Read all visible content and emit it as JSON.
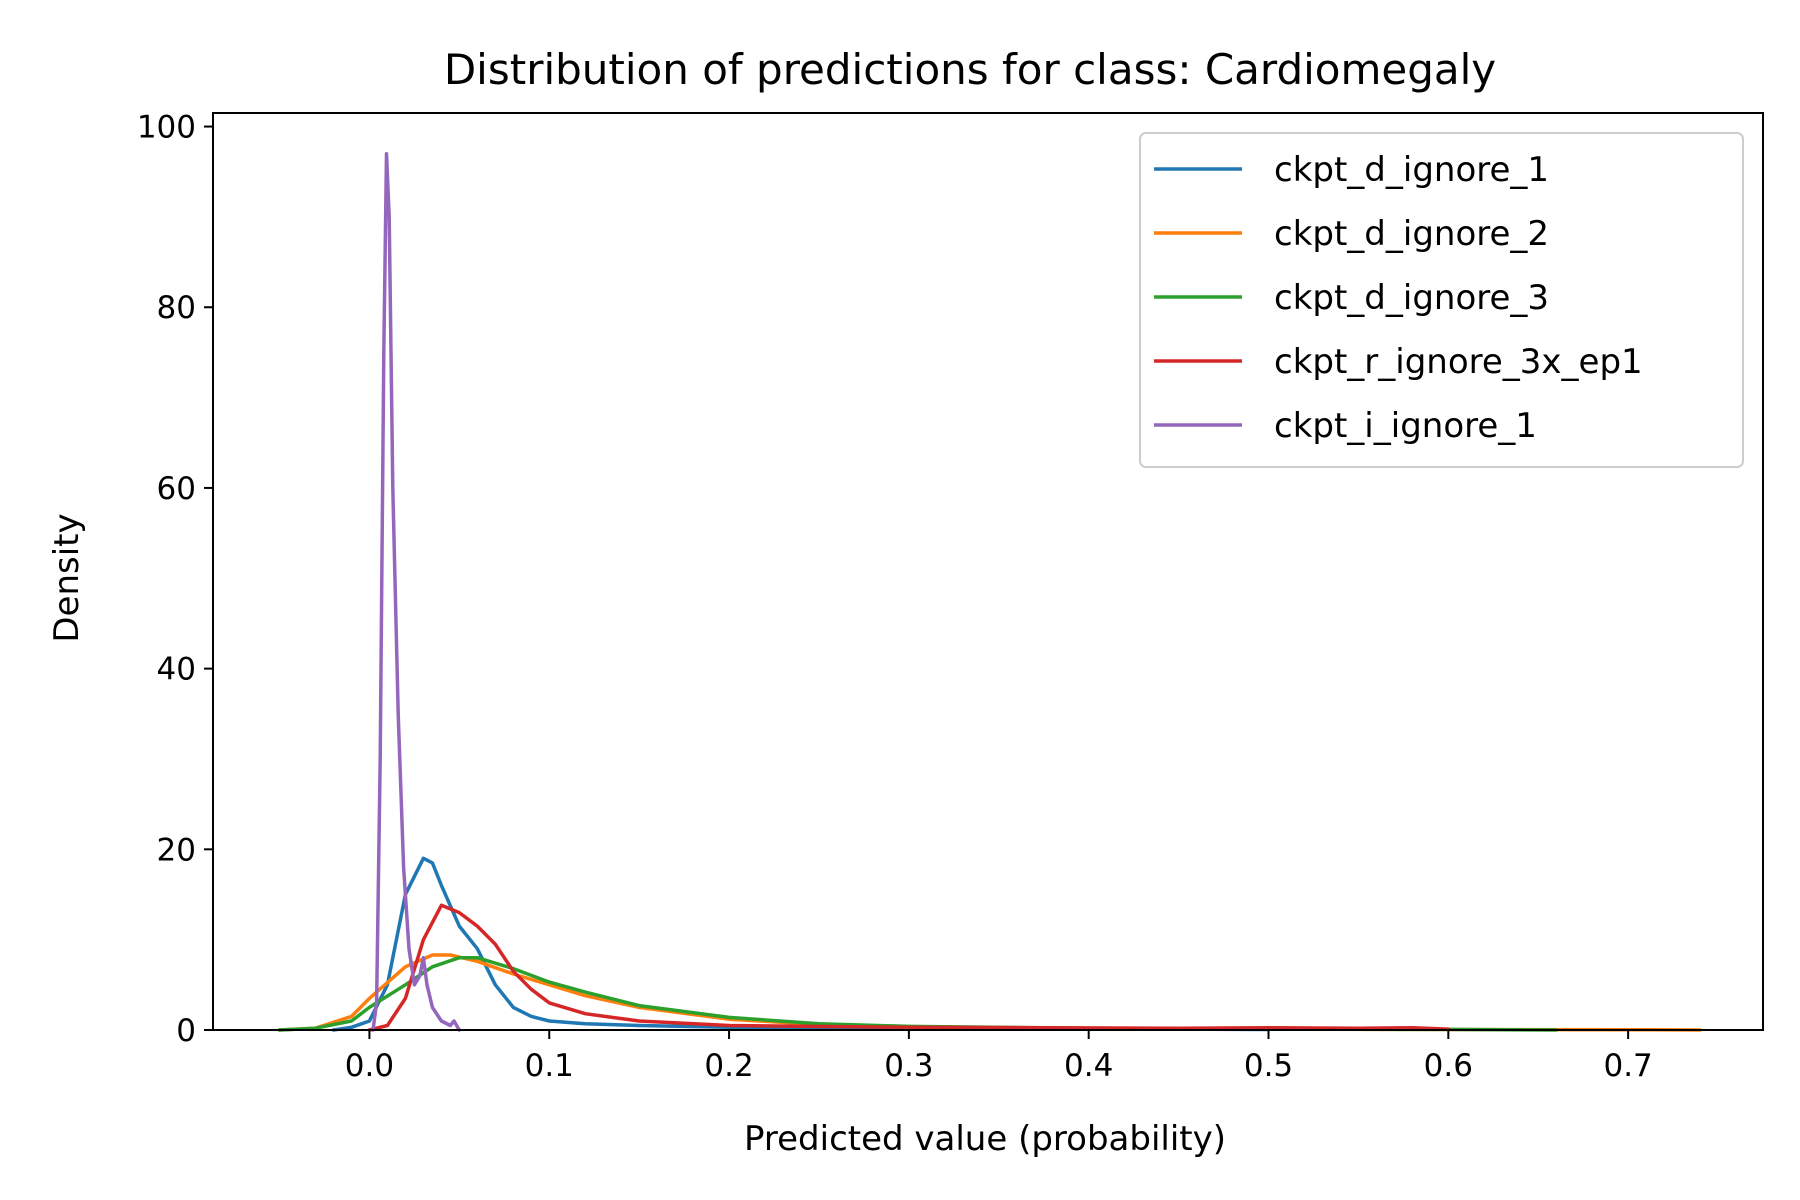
{
  "chart_data": {
    "type": "line",
    "title": "Distribution of predictions for class: Cardiomegaly",
    "xlabel": "Predicted value (probability)",
    "ylabel": "Density",
    "xlim": [
      -0.087,
      0.775
    ],
    "ylim": [
      0,
      101.5
    ],
    "xticks": [
      0.0,
      0.1,
      0.2,
      0.3,
      0.4,
      0.5,
      0.6,
      0.7
    ],
    "xtick_labels": [
      "0.0",
      "0.1",
      "0.2",
      "0.3",
      "0.4",
      "0.5",
      "0.6",
      "0.7"
    ],
    "yticks": [
      0,
      20,
      40,
      60,
      80,
      100
    ],
    "ytick_labels": [
      "0",
      "20",
      "40",
      "60",
      "80",
      "100"
    ],
    "grid": false,
    "legend_position": "top-right",
    "series": [
      {
        "name": "ckpt_d_ignore_1",
        "color": "#1f77b4",
        "points": [
          [
            -0.02,
            0
          ],
          [
            -0.01,
            0.3
          ],
          [
            0,
            1
          ],
          [
            0.01,
            5
          ],
          [
            0.02,
            15
          ],
          [
            0.03,
            19
          ],
          [
            0.035,
            18.5
          ],
          [
            0.04,
            16
          ],
          [
            0.05,
            11.5
          ],
          [
            0.06,
            9
          ],
          [
            0.07,
            5
          ],
          [
            0.08,
            2.5
          ],
          [
            0.09,
            1.5
          ],
          [
            0.1,
            1.0
          ],
          [
            0.12,
            0.7
          ],
          [
            0.15,
            0.5
          ],
          [
            0.2,
            0.3
          ],
          [
            0.3,
            0.15
          ],
          [
            0.45,
            0.1
          ],
          [
            0.5,
            0.05
          ]
        ]
      },
      {
        "name": "ckpt_d_ignore_2",
        "color": "#ff7f0e",
        "points": [
          [
            -0.05,
            0
          ],
          [
            -0.03,
            0.2
          ],
          [
            -0.01,
            1.5
          ],
          [
            0,
            3.5
          ],
          [
            0.02,
            7
          ],
          [
            0.035,
            8.3
          ],
          [
            0.045,
            8.3
          ],
          [
            0.06,
            7.6
          ],
          [
            0.08,
            6.2
          ],
          [
            0.1,
            5
          ],
          [
            0.12,
            3.8
          ],
          [
            0.15,
            2.5
          ],
          [
            0.2,
            1.2
          ],
          [
            0.25,
            0.6
          ],
          [
            0.3,
            0.3
          ],
          [
            0.4,
            0.15
          ],
          [
            0.5,
            0.1
          ],
          [
            0.6,
            0.05
          ],
          [
            0.7,
            0.03
          ],
          [
            0.74,
            0
          ]
        ]
      },
      {
        "name": "ckpt_d_ignore_3",
        "color": "#2ca02c",
        "points": [
          [
            -0.05,
            0
          ],
          [
            -0.03,
            0.2
          ],
          [
            -0.01,
            1
          ],
          [
            0,
            2.5
          ],
          [
            0.02,
            5
          ],
          [
            0.035,
            7
          ],
          [
            0.05,
            8
          ],
          [
            0.06,
            8
          ],
          [
            0.08,
            6.8
          ],
          [
            0.1,
            5.3
          ],
          [
            0.12,
            4.2
          ],
          [
            0.15,
            2.7
          ],
          [
            0.2,
            1.4
          ],
          [
            0.25,
            0.7
          ],
          [
            0.3,
            0.4
          ],
          [
            0.4,
            0.2
          ],
          [
            0.5,
            0.1
          ],
          [
            0.6,
            0.07
          ],
          [
            0.66,
            0
          ]
        ]
      },
      {
        "name": "ckpt_r_ignore_3x_ep1",
        "color": "#d62728",
        "points": [
          [
            0,
            0
          ],
          [
            0.01,
            0.5
          ],
          [
            0.02,
            3.5
          ],
          [
            0.03,
            10
          ],
          [
            0.04,
            13.8
          ],
          [
            0.05,
            13
          ],
          [
            0.06,
            11.5
          ],
          [
            0.07,
            9.5
          ],
          [
            0.08,
            6.5
          ],
          [
            0.09,
            4.5
          ],
          [
            0.1,
            3
          ],
          [
            0.12,
            1.8
          ],
          [
            0.15,
            1.0
          ],
          [
            0.2,
            0.5
          ],
          [
            0.3,
            0.3
          ],
          [
            0.45,
            0.2
          ],
          [
            0.5,
            0.25
          ],
          [
            0.55,
            0.2
          ],
          [
            0.58,
            0.25
          ],
          [
            0.6,
            0.1
          ]
        ]
      },
      {
        "name": "ckpt_i_ignore_1",
        "color": "#9467bd",
        "points": [
          [
            0.002,
            0
          ],
          [
            0.004,
            3
          ],
          [
            0.006,
            30
          ],
          [
            0.008,
            75
          ],
          [
            0.0095,
            97
          ],
          [
            0.011,
            90
          ],
          [
            0.013,
            60
          ],
          [
            0.016,
            35
          ],
          [
            0.019,
            18
          ],
          [
            0.022,
            9
          ],
          [
            0.025,
            5
          ],
          [
            0.028,
            6
          ],
          [
            0.03,
            8
          ],
          [
            0.032,
            5
          ],
          [
            0.035,
            2.5
          ],
          [
            0.04,
            1
          ],
          [
            0.045,
            0.5
          ],
          [
            0.047,
            1
          ],
          [
            0.05,
            0
          ]
        ]
      }
    ]
  }
}
